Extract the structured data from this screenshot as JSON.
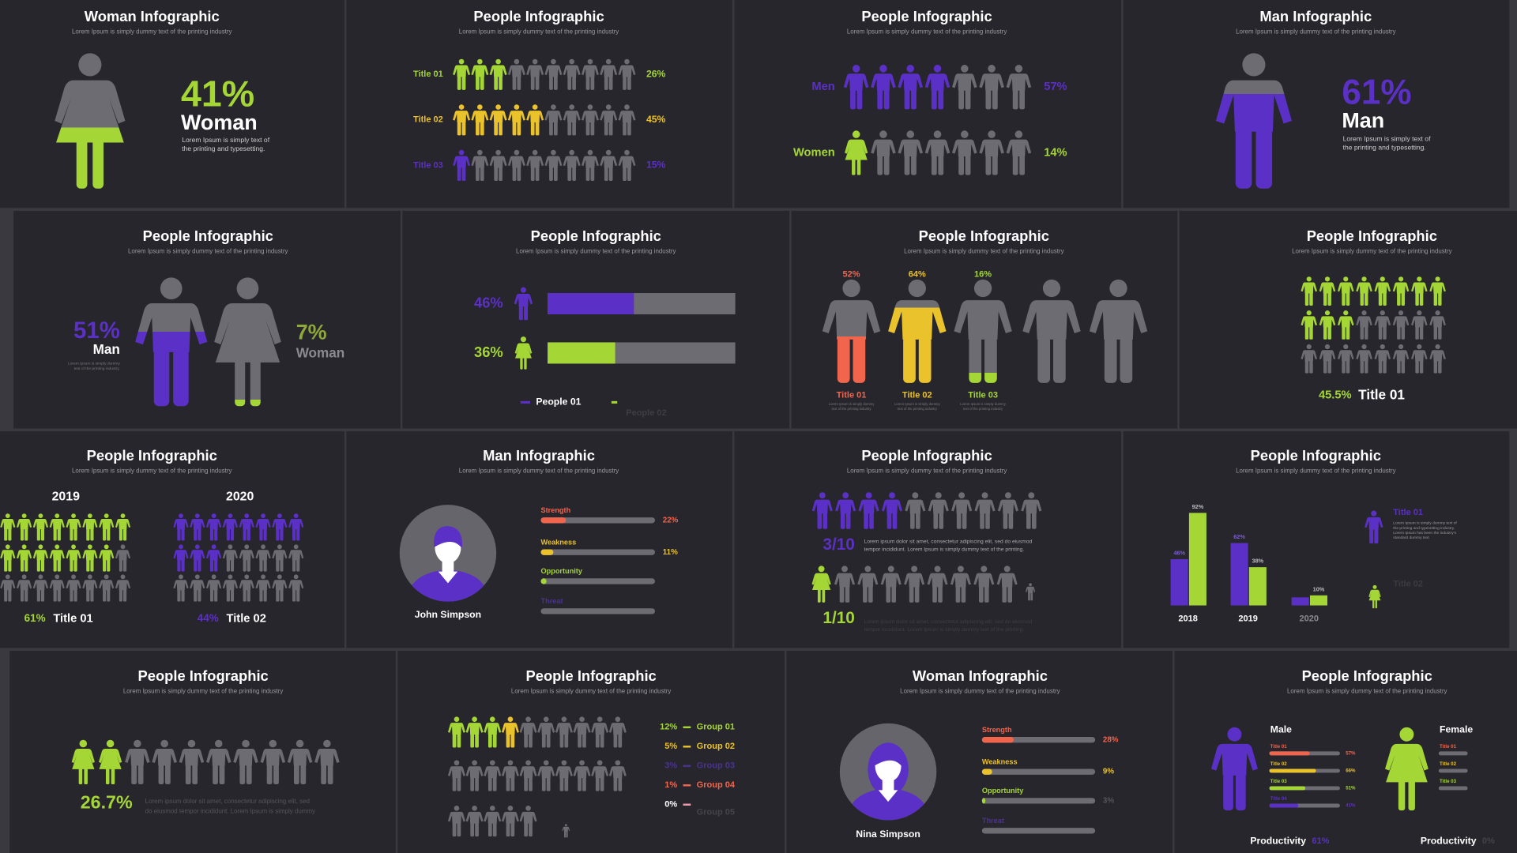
{
  "slides": [
    {
      "title": "Woman Infographic",
      "subtitle": "Lorem Ipsum is simply dummy text of the printing industry",
      "percent": "41%",
      "label": "Woman",
      "text": [
        "Lorem Ipsum is simply text of",
        "the printing and typesetting."
      ]
    },
    {
      "title": "People Infographic",
      "subtitle": "Lorem Ipsum is simply dummy text of the printing industry",
      "rows": [
        {
          "label": "Title 01",
          "percent": "26%"
        },
        {
          "label": "Title 02",
          "percent": "45%"
        },
        {
          "label": "Title 03",
          "percent": "15%"
        }
      ]
    },
    {
      "title": "People Infographic",
      "subtitle": "Lorem Ipsum is simply dummy text of the printing industry",
      "rows": [
        {
          "label": "Men",
          "percent": "57%"
        },
        {
          "label": "Women",
          "percent": "14%"
        }
      ]
    },
    {
      "title": "Man Infographic",
      "subtitle": "Lorem Ipsum is simply dummy text of the printing industry",
      "percent": "61%",
      "label": "Man",
      "text": [
        "Lorem Ipsum is simply text of",
        "the printing and typesetting."
      ]
    },
    {
      "title": "People Infographic",
      "subtitle": "Lorem Ipsum is simply dummy text of the printing industry",
      "man": {
        "percent": "51%",
        "label": "Man",
        "text": [
          "Lorem Ipsum is simply dummy",
          "text of the printing industry."
        ]
      },
      "woman": {
        "percent": "7%",
        "label": "Woman"
      }
    },
    {
      "title": "People Infographic",
      "subtitle": "Lorem Ipsum is simply dummy text of the printing industry",
      "bars": [
        {
          "value": 46,
          "value_label": "46%"
        },
        {
          "value": 36,
          "value_label": "36%"
        }
      ],
      "legend": [
        "People 01",
        "People 02"
      ]
    },
    {
      "title": "People Infographic",
      "subtitle": "Lorem Ipsum is simply dummy text of the printing industry",
      "figures": [
        {
          "percent": "52%",
          "label": "Title 01",
          "text": [
            "Lorem Ipsum is simply dummy",
            "text of the printing industry"
          ]
        },
        {
          "percent": "64%",
          "label": "Title 02",
          "text": [
            "Lorem Ipsum is simply dummy",
            "text of the printing industry"
          ]
        },
        {
          "percent": "16%",
          "label": "Title 03",
          "text": [
            "Lorem Ipsum is simply dummy",
            "text of the printing industry"
          ]
        }
      ]
    },
    {
      "title": "People Infographic",
      "subtitle": "Lorem Ipsum is simply dummy text of the printing industry",
      "percent": "45.5%",
      "label": "Title 01"
    },
    {
      "title": "People Infographic",
      "subtitle": "Lorem Ipsum is simply dummy text of the printing industry",
      "groups": [
        {
          "year": "2019",
          "percent": "61%",
          "label": "Title 01"
        },
        {
          "year": "2020",
          "percent": "44%",
          "label": "Title 02"
        }
      ]
    },
    {
      "title": "Man Infographic",
      "subtitle": "Lorem Ipsum is simply dummy text of the printing industry",
      "name": "John Simpson",
      "bars": [
        {
          "label": "Strength",
          "value": 22,
          "value_label": "22%"
        },
        {
          "label": "Weakness",
          "value": 11,
          "value_label": "11%"
        },
        {
          "label": "Opportunity",
          "value": 5
        },
        {
          "label": "Threat",
          "value": 0
        }
      ]
    },
    {
      "title": "People Infographic",
      "subtitle": "Lorem Ipsum is simply dummy text of the printing industry",
      "rows": [
        {
          "ratio": "3/10",
          "text": [
            "Lorem ipsum dolor sit amet, consectetur adipiscing elit, sed do eiusmod",
            "tempor incididunt. Lorem Ipsum is simply dummy text of the printing."
          ]
        },
        {
          "ratio": "1/10",
          "text": [
            "Lorem ipsum dolor sit amet, consectetur adipiscing elit, sed do eiusmod",
            "tempor incididunt. Lorem Ipsum is simply dummy text of the printing."
          ]
        }
      ]
    },
    {
      "title": "People Infographic",
      "subtitle": "Lorem Ipsum is simply dummy text of the printing industry",
      "categories": [
        "2018",
        "2019",
        "2020"
      ],
      "series": [
        {
          "values": [
            46,
            62,
            8
          ],
          "value_labels": [
            "46%",
            "62%",
            null
          ]
        },
        {
          "values": [
            92,
            38,
            10
          ],
          "value_labels": [
            "92%",
            "38%",
            "10%"
          ]
        }
      ],
      "legend": [
        {
          "label": "Title 01",
          "text": [
            "Lorem Ipsum is simply dummy text of",
            "the printing and typesetting industry.",
            "Lorem Ipsum has been the industry's",
            "standard dummy text"
          ]
        },
        {
          "label": "Title 02"
        }
      ]
    },
    {
      "title": "People Infographic",
      "subtitle": "Lorem Ipsum is simply dummy text of the printing industry",
      "percent": "26.7%",
      "text": [
        "Lorem ipsum dolor sit amet, consectetur adipiscing elit, sed",
        "do eiusmod tempor incididunt. Lorem Ipsum is simply dummy"
      ]
    },
    {
      "title": "People Infographic",
      "subtitle": "Lorem Ipsum is simply dummy text of the printing industry",
      "groups": [
        {
          "percent": "12%",
          "label": "Group 01"
        },
        {
          "percent": "5%",
          "label": "Group 02"
        },
        {
          "percent": "3%",
          "label": "Group 03"
        },
        {
          "percent": "1%",
          "label": "Group 04"
        },
        {
          "percent": "0%",
          "label": "Group 05"
        }
      ]
    },
    {
      "title": "Woman Infographic",
      "subtitle": "Lorem Ipsum is simply dummy text of the printing industry",
      "name": "Nina Simpson",
      "bars": [
        {
          "label": "Strength",
          "value": 28,
          "value_label": "28%"
        },
        {
          "label": "Weakness",
          "value": 9,
          "value_label": "9%"
        },
        {
          "label": "Opportunity",
          "value": 3,
          "value_label": "3%"
        },
        {
          "label": "Threat",
          "value": 0
        }
      ]
    },
    {
      "title": "People Infographic",
      "subtitle": "Lorem Ipsum is simply dummy text of the printing industry",
      "panels": [
        {
          "label": "Male",
          "bars": [
            {
              "label": "Title 01",
              "value": 57,
              "value_label": "57%"
            },
            {
              "label": "Title 02",
              "value": 66,
              "value_label": "66%"
            },
            {
              "label": "Title 03",
              "value": 51,
              "value_label": "51%"
            },
            {
              "label": "Title 04",
              "value": 41,
              "value_label": "41%"
            }
          ],
          "footer": "Productivity",
          "footer_value": "61%"
        },
        {
          "label": "Female",
          "bars": [
            {
              "label": "Title 01",
              "value": 0
            },
            {
              "label": "Title 02",
              "value": 0
            },
            {
              "label": "Title 03",
              "value": 0
            }
          ],
          "footer": "Productivity",
          "footer_value": "0%"
        }
      ]
    }
  ]
}
